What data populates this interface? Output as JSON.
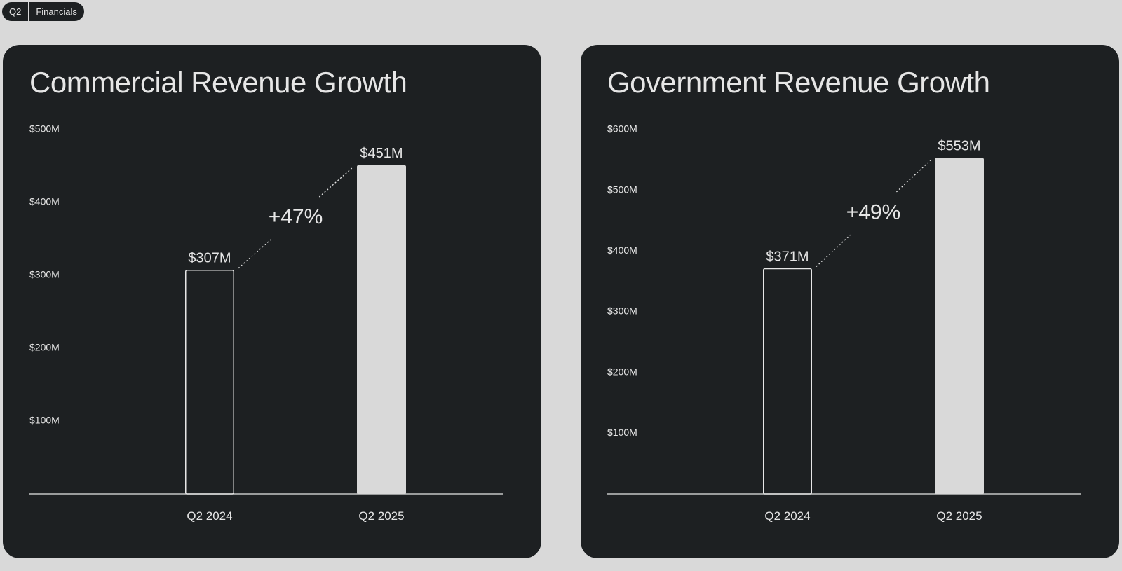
{
  "breadcrumb": {
    "items": [
      "Q2",
      "Financials"
    ]
  },
  "colors": {
    "page_background": "#d9d9d9",
    "panel_background": "#1d2022",
    "text": "#e6e6e6",
    "bar_fill": "#d9d9d9",
    "bar_outline": "#e6e6e6"
  },
  "chart_data": [
    {
      "type": "bar",
      "title": "Commercial Revenue Growth",
      "categories": [
        "Q2 2024",
        "Q2 2025"
      ],
      "values": [
        307,
        451
      ],
      "value_labels": [
        "$307M",
        "$451M"
      ],
      "growth_label": "+47%",
      "yticks": [
        {
          "value": 100,
          "label": "$100M"
        },
        {
          "value": 200,
          "label": "$200M"
        },
        {
          "value": 300,
          "label": "$300M"
        },
        {
          "value": 400,
          "label": "$400M"
        },
        {
          "value": 500,
          "label": "$500M"
        }
      ],
      "ylim": [
        0,
        500
      ],
      "unit": "$M",
      "grid": false,
      "bar_styles": [
        "outline",
        "filled"
      ]
    },
    {
      "type": "bar",
      "title": "Government Revenue Growth",
      "categories": [
        "Q2 2024",
        "Q2 2025"
      ],
      "values": [
        371,
        553
      ],
      "value_labels": [
        "$371M",
        "$553M"
      ],
      "growth_label": "+49%",
      "yticks": [
        {
          "value": 100,
          "label": "$100M"
        },
        {
          "value": 200,
          "label": "$200M"
        },
        {
          "value": 300,
          "label": "$300M"
        },
        {
          "value": 400,
          "label": "$400M"
        },
        {
          "value": 500,
          "label": "$500M"
        },
        {
          "value": 600,
          "label": "$600M"
        }
      ],
      "ylim": [
        0,
        600
      ],
      "unit": "$M",
      "grid": false,
      "bar_styles": [
        "outline",
        "filled"
      ]
    }
  ]
}
